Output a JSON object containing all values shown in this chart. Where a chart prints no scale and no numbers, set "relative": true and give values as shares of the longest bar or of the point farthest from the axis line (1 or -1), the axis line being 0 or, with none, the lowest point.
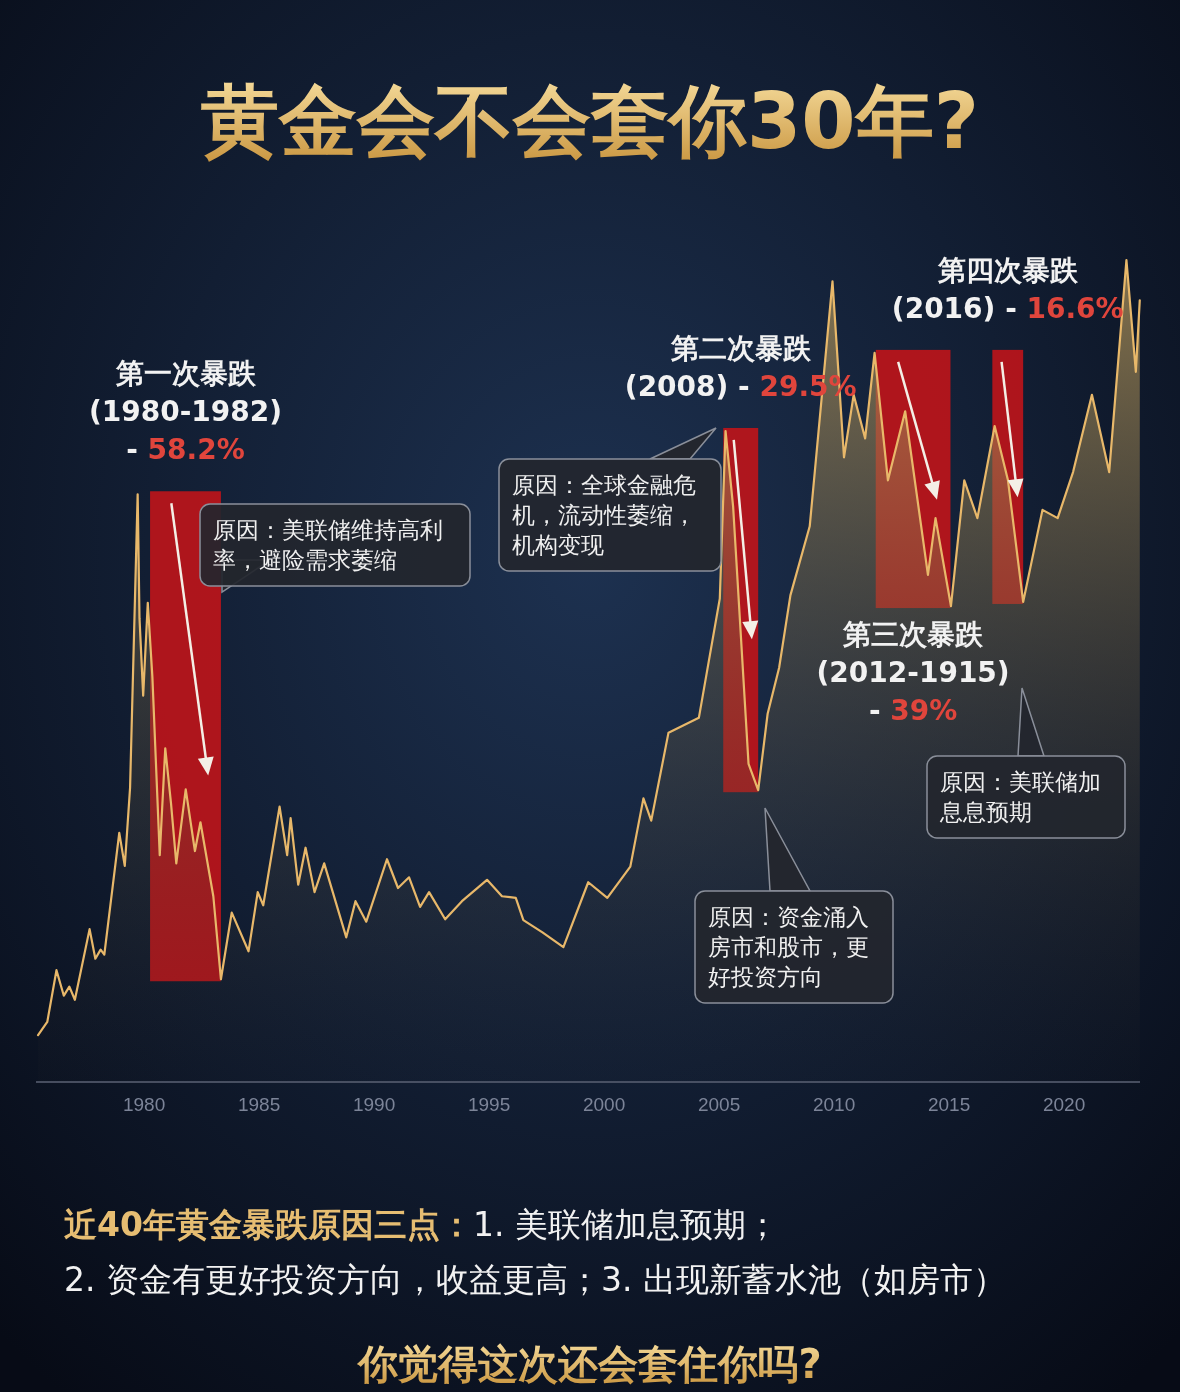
{
  "chart_data": {
    "type": "area",
    "title": "黄金会不会套你30年?",
    "relative": true,
    "xlim": [
      1975.3,
      2023.3
    ],
    "xticks": [
      1980,
      1985,
      1990,
      1995,
      2000,
      2005,
      2010,
      2015,
      2020
    ],
    "series": [
      {
        "color": "#e8b86a",
        "x": [
          1975.39,
          1975.79,
          1976.19,
          1976.51,
          1976.75,
          1976.99,
          1977.63,
          1977.88,
          1978.11,
          1978.27,
          1978.92,
          1979.16,
          1979.39,
          1979.72,
          1979.8,
          1979.96,
          1980.16,
          1980.36,
          1980.68,
          1980.92,
          1981.17,
          1981.4,
          1981.81,
          1982.21,
          1982.45,
          1983.01,
          1983.34,
          1983.81,
          1984.54,
          1984.94,
          1985.18,
          1985.89,
          1986.22,
          1986.37,
          1986.7,
          1987.02,
          1987.41,
          1987.83,
          1988.79,
          1989.19,
          1989.66,
          1990.56,
          1991.04,
          1991.52,
          1992.0,
          1992.39,
          1993.09,
          1993.82,
          1994.91,
          1995.56,
          1996.16,
          1996.49,
          1997.32,
          1998.23,
          1999.31,
          2000.14,
          2001.14,
          2001.71,
          2002.05,
          2002.8,
          2004.12,
          2005.03,
          2005.28,
          2005.61,
          2005.95,
          2006.28,
          2006.7,
          2007.11,
          2007.61,
          2008.1,
          2008.94,
          2009.93,
          2010.43,
          2010.85,
          2011.35,
          2011.76,
          2012.34,
          2013.09,
          2014.08,
          2014.41,
          2015.08,
          2015.66,
          2016.23,
          2016.98,
          2017.56,
          2018.22,
          2019.06,
          2019.72,
          2020.39,
          2021.21,
          2021.96,
          2022.71,
          2023.12,
          2023.29
        ],
        "values": [
          0.057,
          0.073,
          0.136,
          0.105,
          0.116,
          0.1,
          0.186,
          0.15,
          0.161,
          0.155,
          0.303,
          0.263,
          0.358,
          0.715,
          0.564,
          0.47,
          0.583,
          0.493,
          0.276,
          0.406,
          0.339,
          0.266,
          0.356,
          0.281,
          0.316,
          0.226,
          0.125,
          0.206,
          0.159,
          0.231,
          0.215,
          0.335,
          0.276,
          0.321,
          0.24,
          0.285,
          0.231,
          0.266,
          0.176,
          0.22,
          0.195,
          0.271,
          0.236,
          0.249,
          0.213,
          0.231,
          0.198,
          0.22,
          0.246,
          0.226,
          0.224,
          0.197,
          0.182,
          0.164,
          0.243,
          0.224,
          0.262,
          0.345,
          0.318,
          0.425,
          0.443,
          0.588,
          0.792,
          0.7,
          0.541,
          0.387,
          0.355,
          0.448,
          0.504,
          0.592,
          0.676,
          0.974,
          0.76,
          0.836,
          0.783,
          0.887,
          0.732,
          0.816,
          0.617,
          0.686,
          0.579,
          0.732,
          0.686,
          0.798,
          0.732,
          0.584,
          0.696,
          0.686,
          0.742,
          0.836,
          0.742,
          1.0,
          0.864,
          0.951
        ]
      }
    ],
    "bands": [
      {
        "axis": "x",
        "from": 1980.26,
        "to": 1983.34,
        "color": "#c0141a",
        "label": "第一次暴跌\n(1980-1982)\n- 58.2%"
      },
      {
        "axis": "x",
        "from": 2005.18,
        "to": 2006.7,
        "color": "#c0141a",
        "label": "第二次暴跌\n(2008) - 29.5%"
      },
      {
        "axis": "x",
        "from": 2011.81,
        "to": 2015.06,
        "color": "#c0141a",
        "label": "第三次暴跌\n(2012-1915)\n- 39%"
      },
      {
        "axis": "x",
        "from": 2016.88,
        "to": 2018.22,
        "color": "#c0141a",
        "label": "第四次暴跌\n(2016) - 16.6%"
      }
    ],
    "annotations": [
      "原因：美联储维持高利率，避险需求萎缩",
      "原因：全球金融危机，流动性萎缩，机构变现",
      "原因：资金涌入房市和股市，更好投资方向",
      "原因：美联储加息息预期",
      "近40年黄金暴跌原因三点：1. 美联储加息预期；",
      "2. 资金有更好投资方向，收益更高；3. 出现新蓄水池（如房市）",
      "你觉得这次还会套住你吗?"
    ]
  }
}
